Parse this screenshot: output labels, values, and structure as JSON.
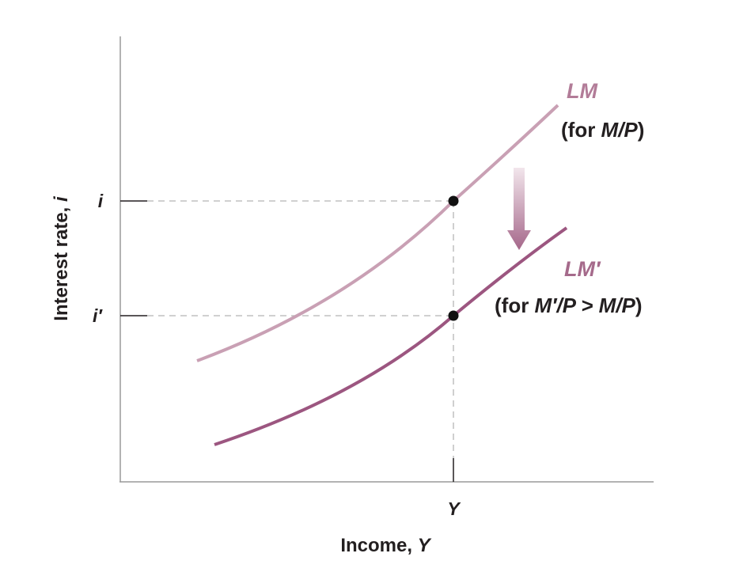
{
  "colors": {
    "axis": "#9a9a9a",
    "text": "#231f20",
    "lm_curve": "#c9a0b4",
    "lm_prime_curve": "#9c5680",
    "lm_label": "#b27c98",
    "lm_prime_label": "#a56a8b",
    "dashed": "#b5b5b5",
    "point": "#111111",
    "arrow_top": "#f2e6ec",
    "arrow_bottom": "#a5678a"
  },
  "axes": {
    "y_label_text": "Interest rate, ",
    "y_label_var": "i",
    "x_label_text": "Income, ",
    "x_label_var": "Y"
  },
  "ticks": {
    "y_high": "i",
    "y_low": "i′",
    "x_mark": "Y"
  },
  "curves": {
    "lm": {
      "name": "LM",
      "note_pre": "(for ",
      "note_var": "M/P",
      "note_post": ")"
    },
    "lm_prime": {
      "name": "LM′",
      "note_pre": "(for ",
      "note_var": "M′/P > M/P",
      "note_post": ")"
    }
  },
  "shift_arrow": {
    "direction": "down"
  }
}
